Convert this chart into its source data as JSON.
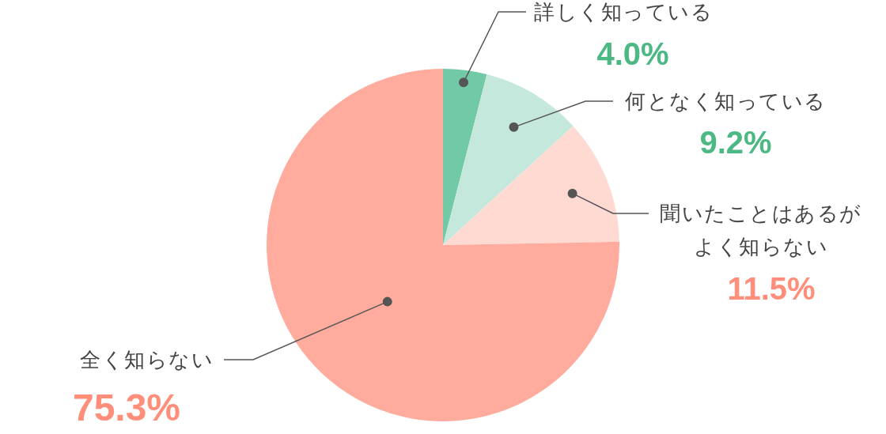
{
  "chart_data": {
    "type": "pie",
    "categories": [
      "詳しく知っている",
      "何となく知っている",
      "聞いたことはあるがよく知らない",
      "全く知らない"
    ],
    "values": [
      4.0,
      9.2,
      11.5,
      75.3
    ],
    "colors": [
      "#72c9a5",
      "#c5e8dc",
      "#ffdad3",
      "#ffab9d"
    ],
    "value_labels": [
      "4.0%",
      "9.2%",
      "11.5%",
      "75.3%"
    ]
  }
}
